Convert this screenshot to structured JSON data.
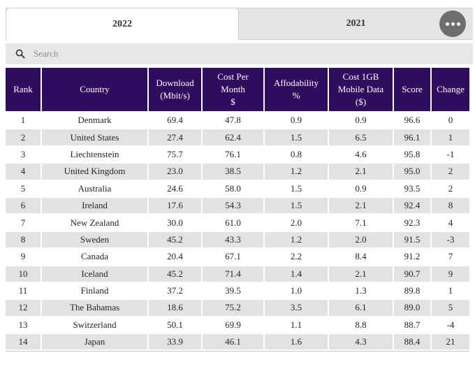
{
  "tabs": [
    {
      "label": "2022",
      "active": true
    },
    {
      "label": "2021",
      "active": false
    }
  ],
  "menu_button": {
    "icon": "ellipsis"
  },
  "search": {
    "placeholder": "Search",
    "value": ""
  },
  "table": {
    "columns": [
      {
        "id": "rank",
        "lines": [
          "Rank"
        ]
      },
      {
        "id": "country",
        "lines": [
          "Country"
        ]
      },
      {
        "id": "download",
        "lines": [
          "Download",
          "(Mbit/s)"
        ]
      },
      {
        "id": "cost_per_month",
        "lines": [
          "Cost Per",
          "Month",
          "$"
        ]
      },
      {
        "id": "affordability",
        "lines": [
          "Affodability",
          "%"
        ]
      },
      {
        "id": "cost_1gb",
        "lines": [
          "Cost 1GB",
          "Mobile Data",
          "($)"
        ]
      },
      {
        "id": "score",
        "lines": [
          "Score"
        ]
      },
      {
        "id": "change",
        "lines": [
          "Change"
        ]
      }
    ],
    "rows": [
      [
        "1",
        "Denmark",
        "69.4",
        "47.8",
        "0.9",
        "0.9",
        "96.6",
        "0"
      ],
      [
        "2",
        "United States",
        "27.4",
        "62.4",
        "1.5",
        "6.5",
        "96.1",
        "1"
      ],
      [
        "3",
        "Liechtenstein",
        "75.7",
        "76.1",
        "0.8",
        "4.6",
        "95.8",
        "-1"
      ],
      [
        "4",
        "United Kingdom",
        "23.0",
        "38.5",
        "1.2",
        "2.1",
        "95.0",
        "2"
      ],
      [
        "5",
        "Australia",
        "24.6",
        "58.0",
        "1.5",
        "0.9",
        "93.5",
        "2"
      ],
      [
        "6",
        "Ireland",
        "17.6",
        "54.3",
        "1.5",
        "2.1",
        "92.4",
        "8"
      ],
      [
        "7",
        "New Zealand",
        "30.0",
        "61.0",
        "2.0",
        "7.1",
        "92.3",
        "4"
      ],
      [
        "8",
        "Sweden",
        "45.2",
        "43.3",
        "1.2",
        "2.0",
        "91.5",
        "-3"
      ],
      [
        "9",
        "Canada",
        "20.4",
        "67.1",
        "2.2",
        "8.4",
        "91.2",
        "7"
      ],
      [
        "10",
        "Iceland",
        "45.2",
        "71.4",
        "1.4",
        "2.1",
        "90.7",
        "9"
      ],
      [
        "11",
        "Finland",
        "37.2",
        "39.5",
        "1.0",
        "1.3",
        "89.8",
        "1"
      ],
      [
        "12",
        "The Bahamas",
        "18.6",
        "75.2",
        "3.5",
        "6.1",
        "89.0",
        "5"
      ],
      [
        "13",
        "Switzerland",
        "50.1",
        "69.9",
        "1.1",
        "8.8",
        "88.7",
        "-4"
      ],
      [
        "14",
        "Japan",
        "33.9",
        "46.1",
        "1.6",
        "4.3",
        "88.4",
        "21"
      ]
    ]
  },
  "colors": {
    "header_bg": "#2e0c5e",
    "stripe_row": "#e2e2e2",
    "tab_bg": "#e4e4e4",
    "search_bg": "#e7e7e7",
    "menu_circle": "#6e6e6e"
  }
}
